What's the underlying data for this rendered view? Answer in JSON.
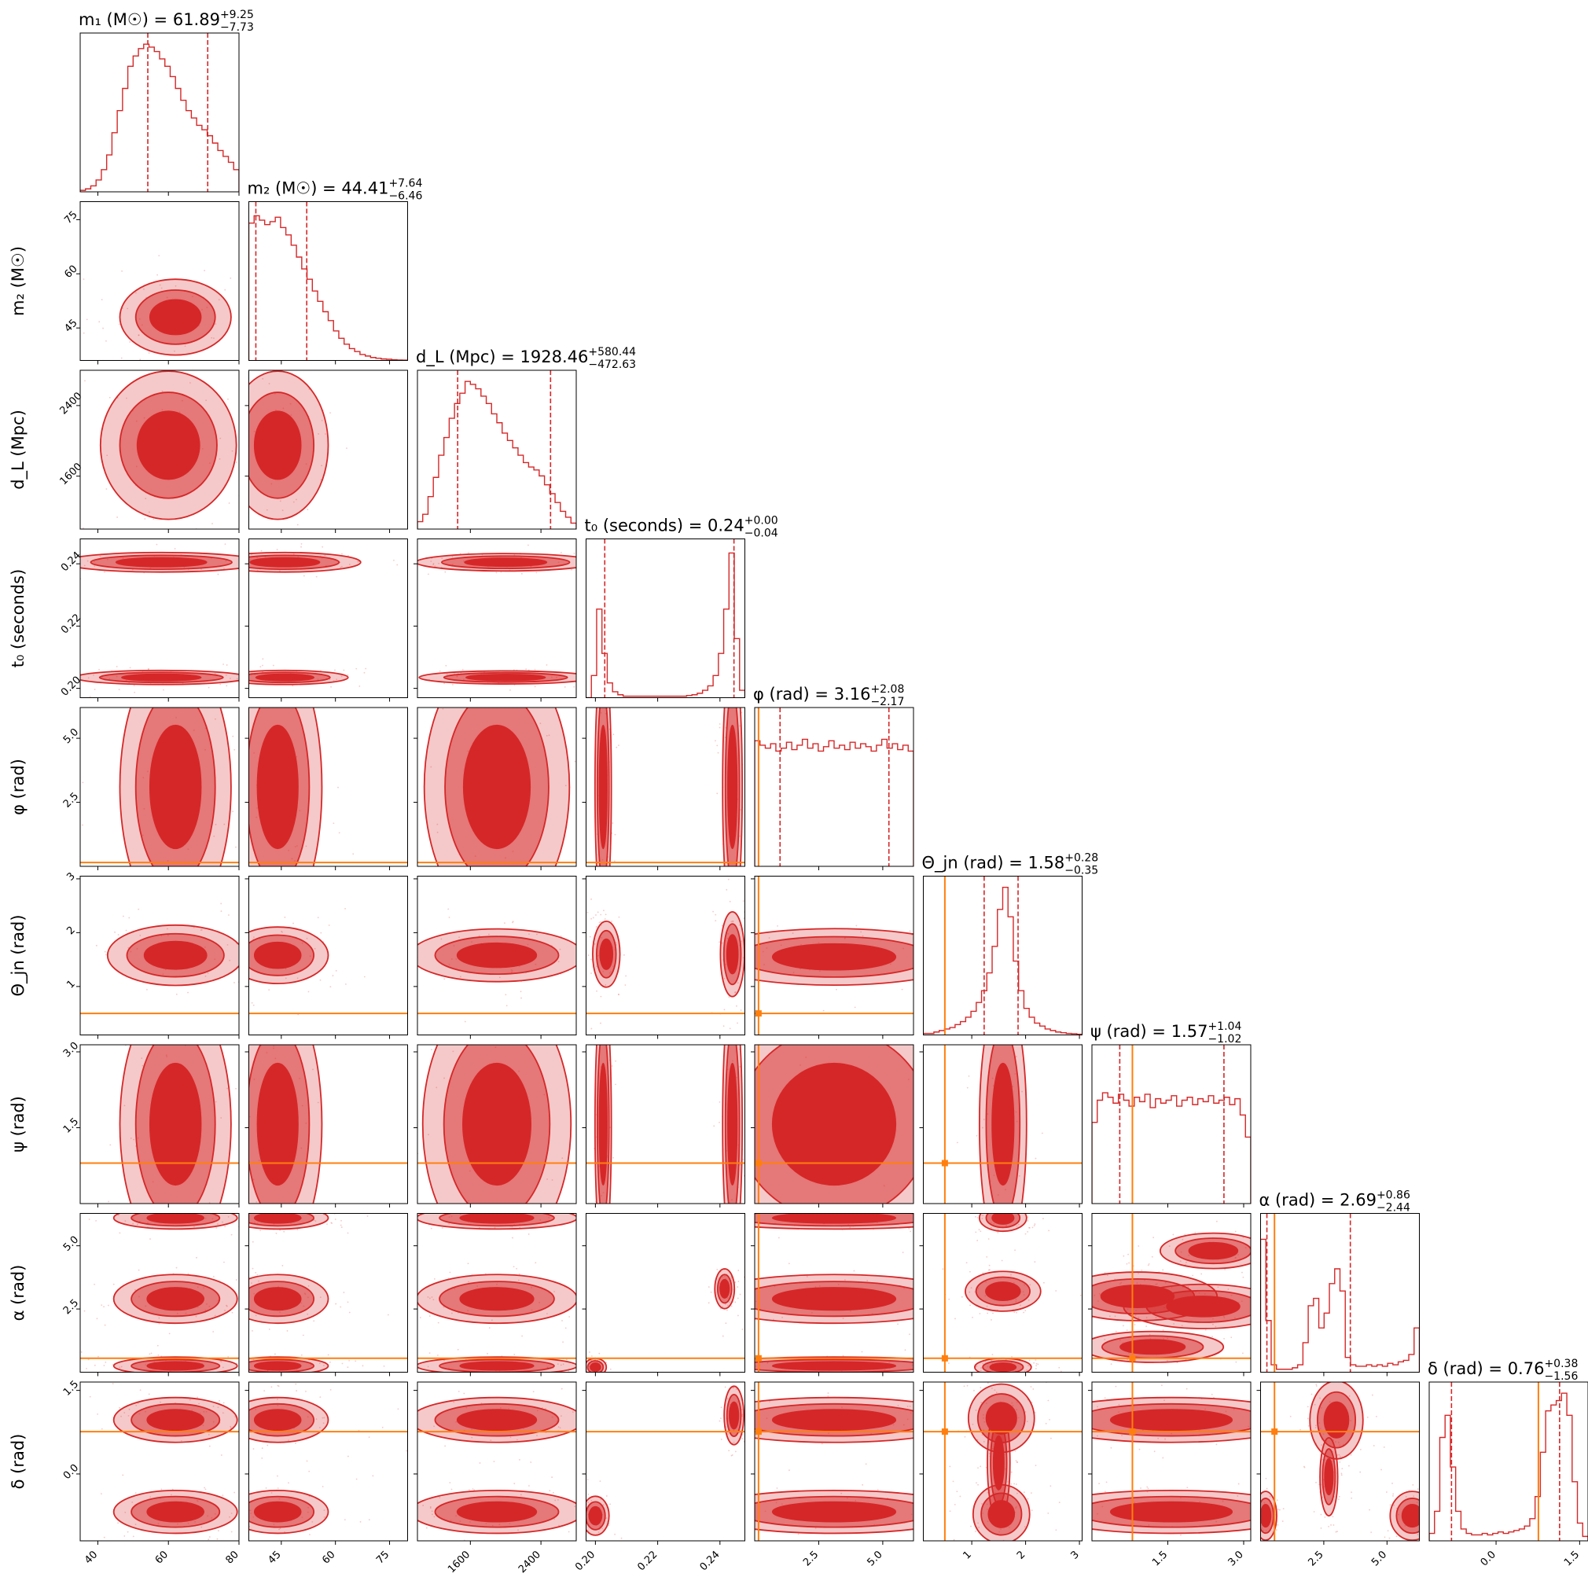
{
  "colors": {
    "posterior": "#d62728",
    "truth": "#ff7f0e",
    "axis": "#000000"
  },
  "chart_data": {
    "type": "corner",
    "parameters": [
      {
        "id": "m1",
        "label": "m₁ (M☉)",
        "range": [
          35,
          80
        ],
        "ticks": [
          40,
          60,
          80
        ],
        "tick_labels": [
          "40",
          "60",
          "80"
        ],
        "title": "m₁ (M☉) = 61.89",
        "err_plus": "+9.25",
        "err_minus": "−7.73",
        "median": 61.89,
        "q_low": 54.16,
        "q_high": 71.14
      },
      {
        "id": "m2",
        "label": "m₂ (M☉)",
        "range": [
          36,
          80
        ],
        "ticks": [
          45,
          60,
          75
        ],
        "tick_labels": [
          "45",
          "60",
          "75"
        ],
        "title": "m₂ (M☉) = 44.41",
        "err_plus": "+7.64",
        "err_minus": "−6.46",
        "median": 44.41,
        "q_low": 37.95,
        "q_high": 52.05
      },
      {
        "id": "dL",
        "label": "d_L (Mpc)",
        "range": [
          1000,
          2800
        ],
        "ticks": [
          1600,
          2400
        ],
        "tick_labels": [
          "1600",
          "2400"
        ],
        "title": "d_L (Mpc) = 1928.46",
        "err_plus": "+580.44",
        "err_minus": "−472.63",
        "median": 1928.46,
        "q_low": 1455.83,
        "q_high": 2508.9
      },
      {
        "id": "t0",
        "label": "t₀ (seconds)",
        "range": [
          0.197,
          0.248
        ],
        "ticks": [
          0.2,
          0.22,
          0.24
        ],
        "tick_labels": [
          "0.20",
          "0.22",
          "0.24"
        ],
        "title": "t₀ (seconds) = 0.24",
        "err_plus": "+0.00",
        "err_minus": "−0.04",
        "median": 0.244,
        "q_low": 0.203,
        "q_high": 0.2445
      },
      {
        "id": "phi",
        "label": "φ (rad)",
        "range": [
          0,
          6.2
        ],
        "ticks": [
          2.5,
          5.0
        ],
        "tick_labels": [
          "2.5",
          "5.0"
        ],
        "title": "φ (rad) = 3.16",
        "err_plus": "+2.08",
        "err_minus": "−2.17",
        "median": 3.16,
        "q_low": 0.99,
        "q_high": 5.24,
        "truth": 0.15
      },
      {
        "id": "theta",
        "label": "Θ_jn (rad)",
        "range": [
          0.1,
          3.05
        ],
        "ticks": [
          1,
          2,
          3
        ],
        "tick_labels": [
          "1",
          "2",
          "3"
        ],
        "title": "Θ_jn (rad) = 1.58",
        "err_plus": "+0.28",
        "err_minus": "−0.35",
        "median": 1.58,
        "q_low": 1.23,
        "q_high": 1.86,
        "truth": 0.5
      },
      {
        "id": "psi",
        "label": "ψ (rad)",
        "range": [
          0,
          3.14
        ],
        "ticks": [
          1.5,
          3.0
        ],
        "tick_labels": [
          "1.5",
          "3.0"
        ],
        "title": "ψ (rad) = 1.57",
        "err_plus": "+1.04",
        "err_minus": "−1.02",
        "median": 1.57,
        "q_low": 0.55,
        "q_high": 2.61,
        "truth": 0.8
      },
      {
        "id": "alpha",
        "label": "α (rad)",
        "range": [
          0,
          6.28
        ],
        "ticks": [
          2.5,
          5.0
        ],
        "tick_labels": [
          "2.5",
          "5.0"
        ],
        "title": "α (rad) = 2.69",
        "err_plus": "+0.86",
        "err_minus": "−2.44",
        "median": 2.69,
        "q_low": 0.25,
        "q_high": 3.55,
        "truth": 0.55
      },
      {
        "id": "delta",
        "label": "δ (rad)",
        "range": [
          -1.2,
          1.65
        ],
        "ticks": [
          0.0,
          1.5
        ],
        "tick_labels": [
          "0.0",
          "1.5"
        ],
        "title": "δ (rad) = 0.76",
        "err_plus": "+0.38",
        "err_minus": "−1.56",
        "median": 0.76,
        "q_low": -0.8,
        "q_high": 1.14,
        "truth": 0.76
      }
    ],
    "marginals": {
      "m1": [
        0.01,
        0.02,
        0.04,
        0.08,
        0.15,
        0.25,
        0.4,
        0.55,
        0.7,
        0.85,
        0.92,
        0.97,
        1.0,
        0.98,
        0.95,
        0.9,
        0.85,
        0.78,
        0.7,
        0.62,
        0.55,
        0.5,
        0.45,
        0.42,
        0.38,
        0.33,
        0.28,
        0.24,
        0.2,
        0.15
      ],
      "m2": [
        0.93,
        0.98,
        0.95,
        0.92,
        0.94,
        0.97,
        0.9,
        0.85,
        0.78,
        0.7,
        0.62,
        0.55,
        0.47,
        0.4,
        0.33,
        0.27,
        0.2,
        0.15,
        0.11,
        0.08,
        0.06,
        0.04,
        0.03,
        0.02,
        0.015,
        0.01,
        0.008,
        0.005,
        0.003,
        0.002
      ],
      "dL": [
        0.05,
        0.1,
        0.22,
        0.35,
        0.5,
        0.62,
        0.75,
        0.85,
        0.92,
        1.0,
        0.98,
        0.95,
        0.9,
        0.85,
        0.78,
        0.72,
        0.65,
        0.6,
        0.55,
        0.5,
        0.45,
        0.42,
        0.4,
        0.36,
        0.3,
        0.24,
        0.18,
        0.12,
        0.08,
        0.04
      ],
      "t0": [
        0.0,
        0.15,
        0.6,
        0.3,
        0.1,
        0.04,
        0.02,
        0.01,
        0.01,
        0.01,
        0.01,
        0.01,
        0.01,
        0.01,
        0.01,
        0.01,
        0.01,
        0.01,
        0.01,
        0.015,
        0.02,
        0.03,
        0.05,
        0.08,
        0.15,
        0.3,
        0.6,
        0.98,
        0.4,
        0.05
      ],
      "phi": [
        0.85,
        0.82,
        0.8,
        0.83,
        0.78,
        0.8,
        0.84,
        0.79,
        0.82,
        0.86,
        0.8,
        0.83,
        0.78,
        0.81,
        0.85,
        0.8,
        0.82,
        0.79,
        0.84,
        0.8,
        0.83,
        0.81,
        0.78,
        0.82,
        0.86,
        0.8,
        0.83,
        0.79,
        0.82,
        0.78
      ],
      "theta": [
        0.01,
        0.01,
        0.02,
        0.03,
        0.04,
        0.05,
        0.07,
        0.09,
        0.12,
        0.16,
        0.22,
        0.3,
        0.42,
        0.6,
        0.85,
        1.0,
        0.8,
        0.5,
        0.3,
        0.18,
        0.12,
        0.08,
        0.06,
        0.04,
        0.03,
        0.02,
        0.015,
        0.01,
        0.008,
        0.005
      ],
      "psi": [
        0.55,
        0.7,
        0.75,
        0.72,
        0.68,
        0.74,
        0.7,
        0.66,
        0.72,
        0.69,
        0.74,
        0.65,
        0.71,
        0.68,
        0.7,
        0.73,
        0.66,
        0.7,
        0.72,
        0.67,
        0.71,
        0.69,
        0.73,
        0.68,
        0.7,
        0.72,
        0.67,
        0.71,
        0.6,
        0.45
      ],
      "alpha": [
        0.9,
        0.35,
        0.05,
        0.02,
        0.02,
        0.02,
        0.03,
        0.05,
        0.2,
        0.45,
        0.5,
        0.3,
        0.4,
        0.6,
        0.7,
        0.55,
        0.1,
        0.05,
        0.04,
        0.04,
        0.05,
        0.04,
        0.05,
        0.04,
        0.06,
        0.05,
        0.07,
        0.08,
        0.12,
        0.3
      ],
      "delta": [
        0.05,
        0.2,
        0.7,
        0.85,
        0.5,
        0.2,
        0.08,
        0.05,
        0.04,
        0.04,
        0.05,
        0.04,
        0.05,
        0.06,
        0.05,
        0.06,
        0.07,
        0.08,
        0.1,
        0.15,
        0.3,
        0.6,
        0.88,
        0.92,
        0.95,
        1.0,
        0.85,
        0.4,
        0.12,
        0.03
      ]
    },
    "blobs": {
      "1-0": [
        [
          62,
          48,
          9,
          6
        ]
      ],
      "2-0": [
        [
          60,
          1950,
          11,
          480
        ]
      ],
      "2-1": [
        [
          44,
          1950,
          8,
          480
        ]
      ],
      "3-0": [
        [
          58,
          0.2405,
          16,
          0.0018
        ],
        [
          58,
          0.2035,
          14,
          0.0013
        ]
      ],
      "3-1": [
        [
          46,
          0.2405,
          12,
          0.0018
        ],
        [
          46,
          0.2035,
          10,
          0.0013
        ]
      ],
      "3-2": [
        [
          2000,
          0.2405,
          580,
          0.0016
        ],
        [
          2000,
          0.2035,
          560,
          0.0012
        ]
      ],
      "3-3": [],
      "4-0": [
        [
          62,
          3.1,
          9,
          3.0
        ]
      ],
      "4-1": [
        [
          44,
          3.1,
          7,
          3.0
        ]
      ],
      "4-2": [
        [
          1900,
          3.1,
          470,
          3.0
        ]
      ],
      "4-3": [
        [
          0.2025,
          3.1,
          0.0015,
          3.0
        ],
        [
          0.244,
          3.1,
          0.0018,
          3.0
        ]
      ],
      "5-0": [
        [
          62,
          1.58,
          11,
          0.32
        ]
      ],
      "5-1": [
        [
          44,
          1.58,
          8,
          0.3
        ]
      ],
      "5-2": [
        [
          1900,
          1.58,
          560,
          0.28
        ]
      ],
      "5-3": [
        [
          0.2035,
          1.6,
          0.0025,
          0.35
        ],
        [
          0.244,
          1.6,
          0.0022,
          0.45
        ]
      ],
      "5-4": [
        [
          3.1,
          1.55,
          3.0,
          0.3
        ]
      ],
      "6-0": [
        [
          62,
          1.57,
          9,
          1.5
        ]
      ],
      "6-1": [
        [
          44,
          1.57,
          7,
          1.5
        ]
      ],
      "6-2": [
        [
          1900,
          1.57,
          480,
          1.5
        ]
      ],
      "6-3": [
        [
          0.2025,
          1.57,
          0.0015,
          1.5
        ],
        [
          0.244,
          1.57,
          0.0018,
          1.5
        ]
      ],
      "6-4": [
        [
          3.1,
          1.57,
          3.0,
          1.5
        ]
      ],
      "6-5": [
        [
          1.58,
          1.57,
          0.25,
          1.5
        ]
      ],
      "7-0": [
        [
          62,
          2.9,
          10,
          0.55
        ],
        [
          62,
          6.1,
          10,
          0.25
        ],
        [
          62,
          0.25,
          10,
          0.2
        ]
      ],
      "7-1": [
        [
          44,
          2.9,
          8,
          0.55
        ],
        [
          44,
          6.1,
          8,
          0.25
        ],
        [
          44,
          0.25,
          8,
          0.2
        ]
      ],
      "7-2": [
        [
          1900,
          2.9,
          520,
          0.55
        ],
        [
          1900,
          6.1,
          520,
          0.25
        ],
        [
          1900,
          0.25,
          520,
          0.2
        ]
      ],
      "7-3": [
        [
          0.2415,
          3.3,
          0.0018,
          0.45
        ],
        [
          0.2,
          0.2,
          0.002,
          0.2
        ]
      ],
      "7-4": [
        [
          3.1,
          2.9,
          3.0,
          0.55
        ],
        [
          3.1,
          6.1,
          3.0,
          0.25
        ],
        [
          3.1,
          0.25,
          3.0,
          0.2
        ]
      ],
      "7-5": [
        [
          1.58,
          3.2,
          0.4,
          0.45
        ],
        [
          1.58,
          6.1,
          0.25,
          0.3
        ],
        [
          1.58,
          0.2,
          0.3,
          0.2
        ]
      ],
      "7-6": [
        [
          0.9,
          3.0,
          0.9,
          0.55
        ],
        [
          2.2,
          2.6,
          0.9,
          0.5
        ],
        [
          2.4,
          4.8,
          0.6,
          0.4
        ],
        [
          1.2,
          1.0,
          0.8,
          0.35
        ]
      ],
      "8-0": [
        [
          62,
          0.97,
          10,
          0.23
        ],
        [
          62,
          -0.68,
          10,
          0.22
        ]
      ],
      "8-1": [
        [
          44,
          0.97,
          8,
          0.23
        ],
        [
          44,
          -0.68,
          8,
          0.22
        ]
      ],
      "8-2": [
        [
          1900,
          0.97,
          560,
          0.23
        ],
        [
          1900,
          -0.68,
          560,
          0.22
        ]
      ],
      "8-3": [
        [
          0.2445,
          1.05,
          0.0018,
          0.3
        ],
        [
          0.2,
          -0.75,
          0.0025,
          0.2
        ]
      ],
      "8-4": [
        [
          3.1,
          0.97,
          3.0,
          0.23
        ],
        [
          3.1,
          -0.68,
          3.0,
          0.22
        ]
      ],
      "8-5": [
        [
          1.55,
          1.0,
          0.35,
          0.35
        ],
        [
          1.55,
          -0.72,
          0.3,
          0.3
        ],
        [
          1.5,
          0.2,
          0.12,
          0.6
        ]
      ],
      "8-6": [
        [
          1.57,
          0.97,
          1.5,
          0.23
        ],
        [
          1.57,
          -0.68,
          1.5,
          0.22
        ]
      ],
      "8-7": [
        [
          3.0,
          0.97,
          0.6,
          0.4
        ],
        [
          0.2,
          -0.75,
          0.25,
          0.25
        ],
        [
          6.0,
          -0.75,
          0.5,
          0.25
        ],
        [
          2.7,
          -0.05,
          0.2,
          0.4
        ]
      ]
    }
  }
}
